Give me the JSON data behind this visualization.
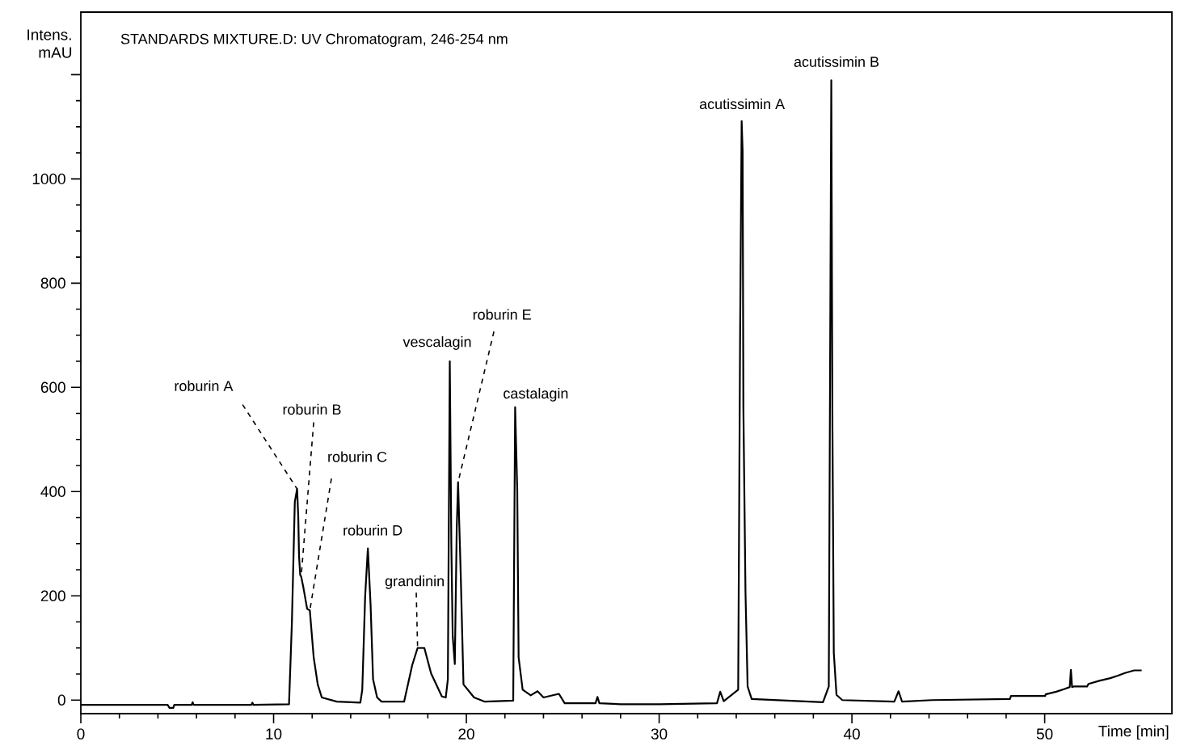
{
  "chart_data": {
    "type": "line",
    "title": "STANDARDS MIXTURE.D: UV Chromatogram, 246-254 nm",
    "xlabel": "Time [min]",
    "ylabel": "Intens. mAU",
    "xlim": [
      0,
      56.6
    ],
    "ylim": [
      -26,
      1320
    ],
    "xticks": [
      0,
      10,
      20,
      30,
      40,
      50
    ],
    "yticks": [
      0,
      200,
      400,
      600,
      800,
      1000,
      {
        "value": 1200,
        "label": null
      }
    ],
    "grid": false,
    "marker": "none",
    "line_style": "solid",
    "series": [
      {
        "color": "#000000",
        "x": [
          0,
          4.5,
          4.6,
          4.8,
          4.85,
          5.75,
          5.8,
          5.85,
          8.85,
          8.9,
          8.95,
          10.8,
          10.95,
          11.1,
          11.22,
          11.28,
          11.32,
          11.38,
          11.43,
          11.55,
          11.74,
          11.88,
          11.95,
          12.08,
          12.29,
          12.5,
          13.28,
          14.5,
          14.6,
          14.75,
          14.89,
          15.03,
          15.16,
          15.37,
          15.6,
          16.77,
          17.19,
          17.47,
          17.82,
          18.17,
          18.73,
          18.93,
          19.04,
          19.14,
          19.22,
          19.29,
          19.4,
          19.5,
          19.57,
          19.71,
          19.85,
          20.4,
          20.96,
          22.43,
          22.53,
          22.64,
          22.71,
          22.92,
          23.34,
          23.69,
          24.0,
          24.8,
          25.1,
          26.7,
          26.8,
          26.9,
          28.0,
          30.0,
          33.0,
          33.17,
          33.35,
          34.1,
          34.2,
          34.28,
          34.33,
          34.37,
          34.48,
          34.59,
          34.8,
          38.5,
          38.8,
          38.93,
          38.99,
          39.06,
          39.2,
          39.5,
          42.2,
          42.42,
          42.6,
          44.16,
          48.2,
          48.25,
          50.03,
          50.05,
          50.6,
          51.0,
          51.3,
          51.36,
          51.42,
          51.5,
          52.2,
          52.27,
          52.83,
          53.4,
          53.8,
          54.16,
          54.64,
          55.03
        ],
        "values": [
          -9,
          -9,
          -15,
          -15,
          -9,
          -9,
          -4,
          -9,
          -9,
          -5,
          -9,
          -8,
          150,
          380,
          405,
          350,
          276,
          240,
          237,
          215,
          175,
          172,
          140,
          82,
          30,
          5,
          -3,
          -5,
          20,
          200,
          291,
          184,
          40,
          5,
          -3,
          -3,
          67,
          100,
          100,
          51,
          7,
          5,
          40,
          650,
          300,
          123,
          69,
          330,
          418,
          237,
          30,
          5,
          -3,
          -1,
          562,
          402,
          82,
          20,
          9,
          17,
          5,
          12,
          -6,
          -6,
          6,
          -6,
          -8,
          -8,
          -6,
          16,
          -2,
          20,
          700,
          1111,
          1054,
          561,
          205,
          26,
          2,
          -4,
          26,
          1189,
          521,
          91,
          10,
          0,
          -3,
          17,
          -3,
          0,
          2,
          8,
          8,
          11,
          16,
          21,
          25,
          58,
          25,
          26,
          26,
          31,
          37,
          42,
          47,
          52,
          57,
          57
        ]
      }
    ],
    "annotations": [
      {
        "text": "roburin A",
        "x": 11.22,
        "y": 405
      },
      {
        "text": "roburin B",
        "x": 11.43,
        "y": 237
      },
      {
        "text": "roburin C",
        "x": 11.88,
        "y": 172
      },
      {
        "text": "roburin D",
        "x": 14.89,
        "y": 291
      },
      {
        "text": "grandinin",
        "x": 17.47,
        "y": 100
      },
      {
        "text": "vescalagin",
        "x": 19.14,
        "y": 650
      },
      {
        "text": "roburin E",
        "x": 19.57,
        "y": 418
      },
      {
        "text": "castalagin",
        "x": 22.53,
        "y": 562
      },
      {
        "text": "acutissimin A",
        "x": 34.28,
        "y": 1111
      },
      {
        "text": "acutissimin B",
        "x": 38.93,
        "y": 1189
      }
    ]
  }
}
